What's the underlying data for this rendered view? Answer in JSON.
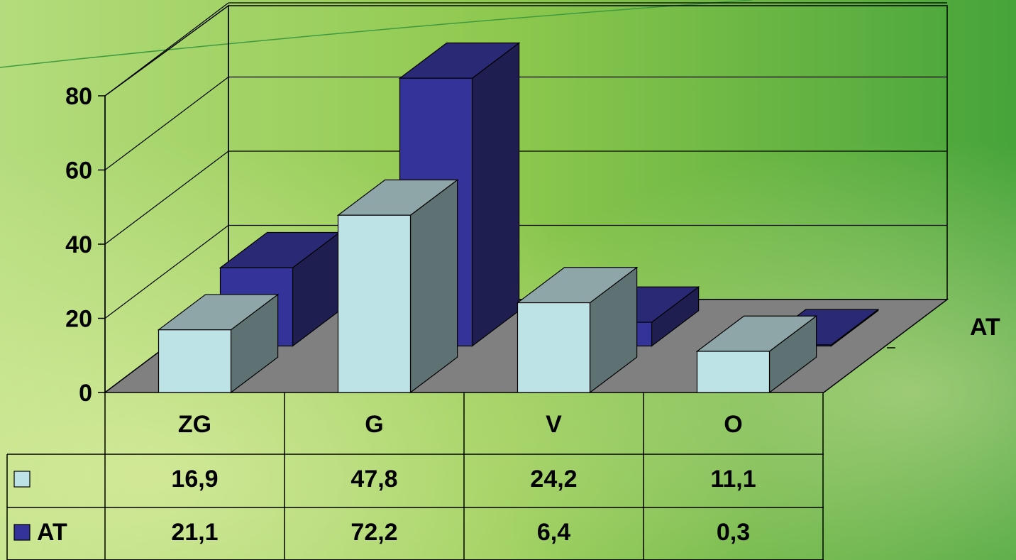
{
  "chart_data": {
    "type": "bar",
    "style": "3d-clustered-with-data-table",
    "categories": [
      "ZG",
      "G",
      "V",
      "O"
    ],
    "series": [
      {
        "name": "",
        "color": "#bde3e6",
        "side_color": "#5f7273",
        "top_color": "#8fa6a8",
        "values": [
          16.9,
          47.8,
          24.2,
          11.1
        ]
      },
      {
        "name": "AT",
        "color": "#333399",
        "side_color": "#1e1e50",
        "top_color": "#292975",
        "values": [
          21.1,
          72.2,
          6.4,
          0.3
        ]
      }
    ],
    "value_labels": [
      [
        "16,9",
        "47,8",
        "24,2",
        "11,1"
      ],
      [
        "21,1",
        "72,2",
        "6,4",
        "0,3"
      ]
    ],
    "y_ticks": [
      "0",
      "20",
      "40",
      "60",
      "80"
    ],
    "ylim": [
      0,
      80
    ],
    "depth_axis_label": "AT",
    "title": "",
    "xlabel": "",
    "ylabel": "",
    "grid": true,
    "floor_color": "#808080",
    "background": "green gradient"
  }
}
